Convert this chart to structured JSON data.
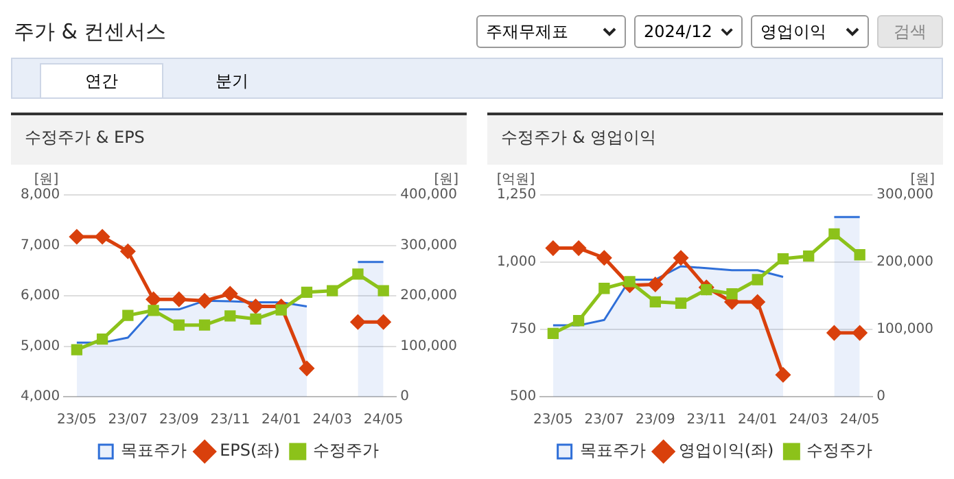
{
  "chart_data": [
    {
      "type": "other",
      "title": "주가 & 컨센서스",
      "annotations": [
        "주재무제표",
        "2024/12",
        "영업이익",
        "검색",
        "연간",
        "분기"
      ]
    },
    {
      "type": "line",
      "title": "수정주가 & EPS",
      "ylabel": "[원]",
      "y2label": "[원]",
      "categories": [
        "23/05",
        null,
        "23/07",
        null,
        "23/09",
        null,
        "23/11",
        null,
        "24/01",
        null,
        "24/03",
        null,
        "24/05"
      ],
      "series": [
        {
          "name": "목표주가",
          "type": "area",
          "color": "#2f6fd8",
          "axis": "y2",
          "marker": "none",
          "values": [
            107000,
            107000,
            117000,
            173000,
            173000,
            190000,
            189000,
            187000,
            187000,
            179000,
            null,
            267000,
            267000
          ]
        },
        {
          "name": "EPS(좌)",
          "type": "line",
          "color": "#d9400c",
          "marker": "diamond",
          "values": [
            7170,
            7170,
            6880,
            5930,
            5930,
            5900,
            6040,
            5790,
            5790,
            4560,
            null,
            5480,
            5480
          ]
        },
        {
          "name": "수정주가",
          "type": "line",
          "color": "#8cc21a",
          "axis": "y2",
          "marker": "square",
          "values": [
            93000,
            114000,
            161000,
            171000,
            142000,
            142000,
            160000,
            154000,
            172000,
            207000,
            210000,
            243000,
            210000
          ]
        }
      ],
      "ylim": [
        4000,
        8000
      ],
      "yticks": [
        {
          "value": 4000,
          "label": "4,000"
        },
        {
          "value": 5000,
          "label": "5,000"
        },
        {
          "value": 6000,
          "label": "6,000"
        },
        {
          "value": 7000,
          "label": "7,000"
        },
        {
          "value": 8000,
          "label": "8,000"
        }
      ],
      "y2lim": [
        0,
        400000
      ],
      "y2ticks": [
        0,
        {
          "value": 100000,
          "label": "100,000"
        },
        {
          "value": 200000,
          "label": "200,000"
        },
        {
          "value": 300000,
          "label": "300,000"
        },
        {
          "value": 400000,
          "label": "400,000"
        }
      ],
      "grid": "y",
      "legend": "bottom"
    },
    {
      "type": "line",
      "title": "수정주가 & 영업이익",
      "ylabel": "[억원]",
      "y2label": "[원]",
      "categories": [
        "23/05",
        null,
        "23/07",
        null,
        "23/09",
        null,
        "23/11",
        null,
        "24/01",
        null,
        "24/03",
        null,
        "24/05"
      ],
      "series": [
        {
          "name": "목표주가",
          "type": "area",
          "color": "#2f6fd8",
          "axis": "y2",
          "marker": "none",
          "values": [
            106000,
            106000,
            114000,
            174000,
            174000,
            194000,
            191000,
            188000,
            188000,
            178000,
            null,
            267000,
            267000
          ]
        },
        {
          "name": "영업이익(좌)",
          "type": "line",
          "color": "#d9400c",
          "marker": "diamond",
          "values": [
            1052,
            1052,
            1016,
            914,
            917,
            1016,
            906,
            852,
            852,
            581,
            null,
            737,
            737
          ]
        },
        {
          "name": "수정주가",
          "type": "line",
          "color": "#8cc21a",
          "axis": "y2",
          "marker": "square",
          "values": [
            94000,
            113000,
            161000,
            171000,
            141000,
            139000,
            159000,
            153000,
            174000,
            205000,
            209000,
            242000,
            211000
          ]
        }
      ],
      "ylim": [
        500,
        1250
      ],
      "yticks": [
        500,
        750,
        {
          "value": 1000,
          "label": "1,000"
        },
        {
          "value": 1250,
          "label": "1,250"
        }
      ],
      "y2lim": [
        0,
        300000
      ],
      "y2ticks": [
        0,
        {
          "value": 100000,
          "label": "100,000"
        },
        {
          "value": 200000,
          "label": "200,000"
        },
        {
          "value": 300000,
          "label": "300,000"
        }
      ],
      "grid": "y",
      "legend": "bottom"
    }
  ]
}
